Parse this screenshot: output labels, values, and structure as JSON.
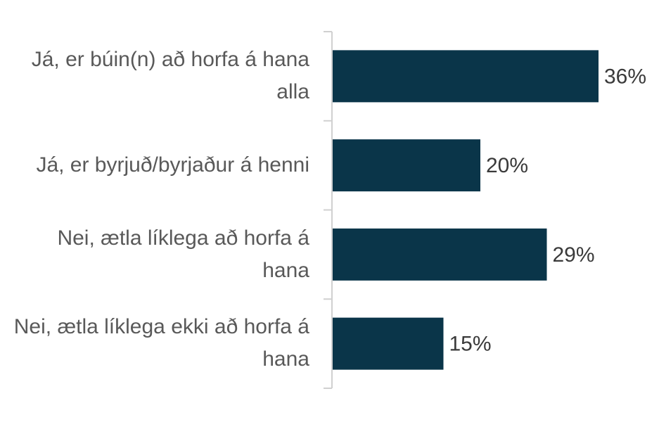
{
  "chart_data": {
    "type": "barh",
    "categories": [
      "Já, er búin(n) að horfa á hana alla",
      "Já, er byrjuð/byrjaður á henni",
      "Nei, ætla líklega að horfa á hana",
      "Nei, ætla líklega ekki að horfa á hana"
    ],
    "values": [
      36,
      20,
      29,
      15
    ],
    "value_labels": [
      "36%",
      "20%",
      "29%",
      "15%"
    ],
    "color": "#0a3549"
  }
}
